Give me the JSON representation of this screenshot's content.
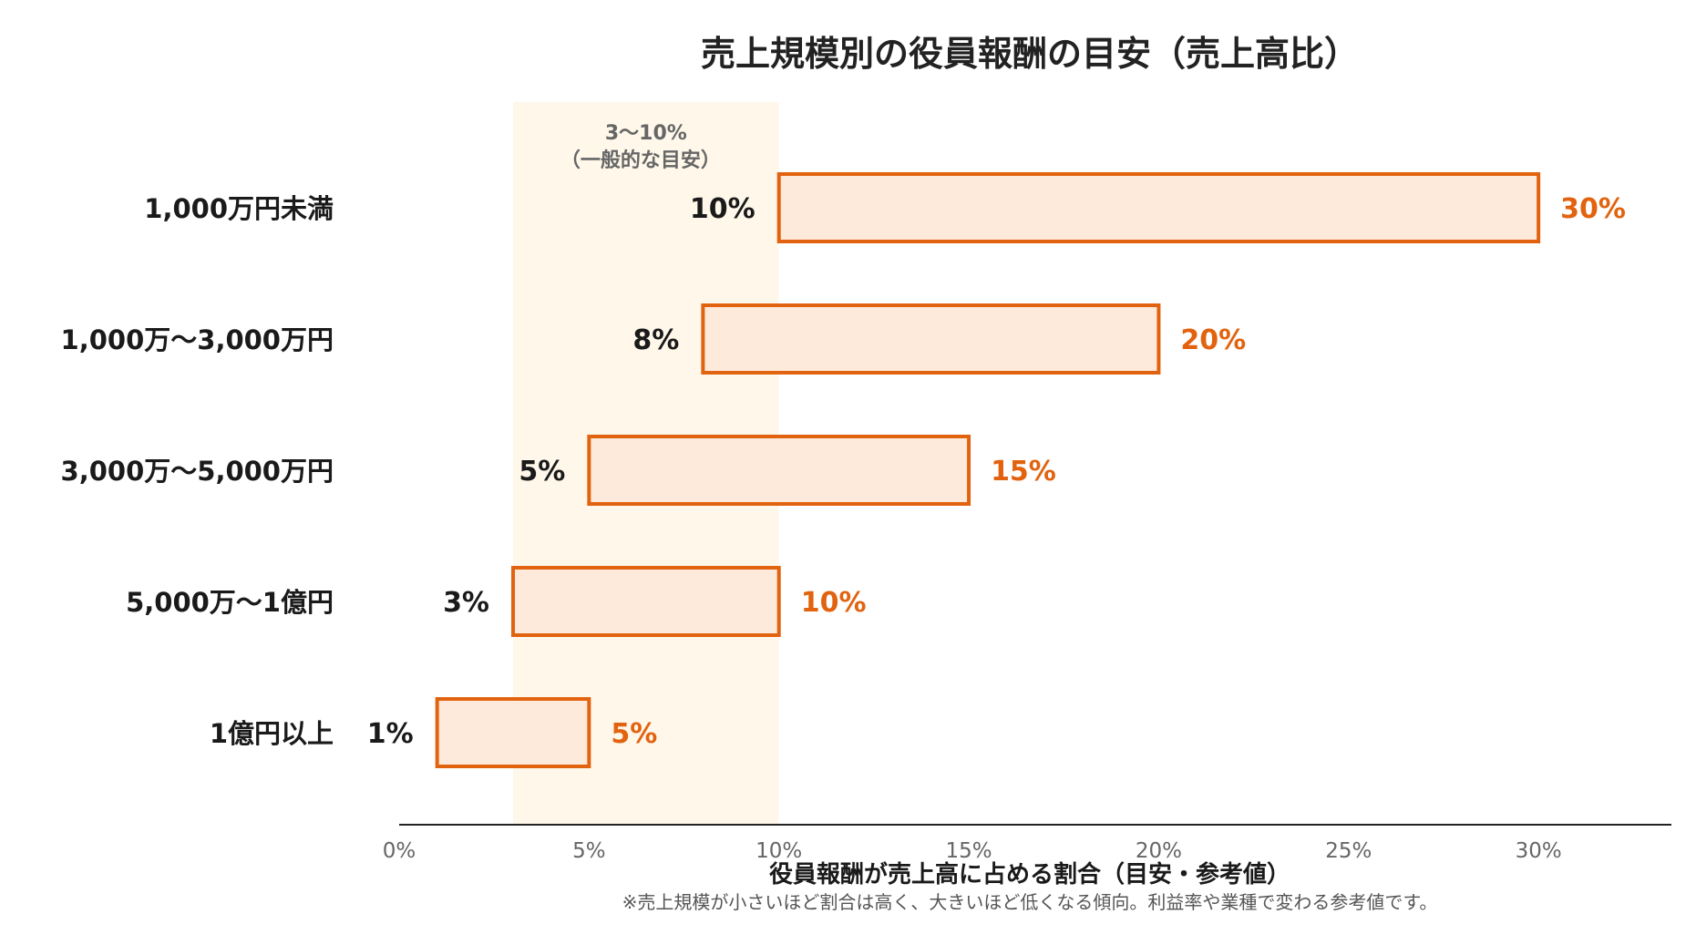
{
  "chart_data": {
    "type": "bar",
    "subtype": "floating-range-horizontal",
    "title": "売上規模別の役員報酬の目安（売上高比）",
    "xlabel": "役員報酬が売上高に占める割合（目安・参考値）",
    "ylabel": "",
    "note": "※売上規模が小さいほど割合は高く、大きいほど低くなる傾向。利益率や業種で変わる参考値です。",
    "categories": [
      "1,000万円未満",
      "1,000万〜3,000万円",
      "3,000万〜5,000万円",
      "5,000万〜1億円",
      "1億円以上"
    ],
    "ranges": [
      {
        "low": 10,
        "high": 30,
        "low_label": "10%",
        "high_label": "30%"
      },
      {
        "low": 8,
        "high": 20,
        "low_label": "8%",
        "high_label": "20%"
      },
      {
        "low": 5,
        "high": 15,
        "low_label": "5%",
        "high_label": "15%"
      },
      {
        "low": 3,
        "high": 10,
        "low_label": "3%",
        "high_label": "10%"
      },
      {
        "low": 1,
        "high": 5,
        "low_label": "1%",
        "high_label": "5%"
      }
    ],
    "xlim": [
      0,
      33.5
    ],
    "xticks": [
      0,
      5,
      10,
      15,
      20,
      25,
      30
    ],
    "xtick_labels": [
      "0%",
      "5%",
      "10%",
      "15%",
      "20%",
      "25%",
      "30%"
    ],
    "reference_band": {
      "from": 3,
      "to": 10,
      "line1": "3〜10%",
      "line2": "（一般的な目安）"
    },
    "grid": false,
    "colors": {
      "bar_fill": "#fdeadb",
      "bar_stroke": "#e2630f",
      "high_label": "#e2630f",
      "band_fill": "#fef7ea",
      "axis": "#222222"
    }
  }
}
